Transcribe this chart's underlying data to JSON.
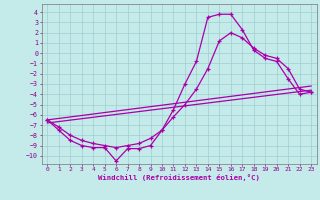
{
  "xlabel": "Windchill (Refroidissement éolien,°C)",
  "xlim": [
    -0.5,
    23.5
  ],
  "ylim": [
    -10.8,
    4.8
  ],
  "xticks": [
    0,
    1,
    2,
    3,
    4,
    5,
    6,
    7,
    8,
    9,
    10,
    11,
    12,
    13,
    14,
    15,
    16,
    17,
    18,
    19,
    20,
    21,
    22,
    23
  ],
  "yticks": [
    4,
    3,
    2,
    1,
    0,
    -1,
    -2,
    -3,
    -4,
    -5,
    -6,
    -7,
    -8,
    -9,
    -10
  ],
  "bg_color": "#c5eaea",
  "grid_color": "#9ecece",
  "line_color": "#aa00aa",
  "curve1_x": [
    0,
    1,
    2,
    3,
    4,
    5,
    6,
    7,
    8,
    9,
    10,
    11,
    12,
    13,
    14,
    15,
    16,
    17,
    18,
    19,
    20,
    21,
    22,
    23
  ],
  "curve1_y": [
    -6.5,
    -7.5,
    -8.5,
    -9.0,
    -9.2,
    -9.2,
    -10.5,
    -9.3,
    -9.3,
    -9.0,
    -7.5,
    -5.5,
    -3.0,
    -0.8,
    3.5,
    3.8,
    3.8,
    2.3,
    0.3,
    -0.5,
    -0.8,
    -2.5,
    -4.0,
    -3.8
  ],
  "curve2_x": [
    0,
    1,
    2,
    3,
    4,
    5,
    6,
    7,
    8,
    9,
    10,
    11,
    12,
    13,
    14,
    15,
    16,
    17,
    18,
    19,
    20,
    21,
    22,
    23
  ],
  "curve2_y": [
    -6.5,
    -7.2,
    -8.0,
    -8.5,
    -8.8,
    -9.0,
    -9.2,
    -9.0,
    -8.8,
    -8.3,
    -7.5,
    -6.2,
    -5.0,
    -3.5,
    -1.5,
    1.2,
    2.0,
    1.5,
    0.5,
    -0.2,
    -0.5,
    -1.5,
    -3.5,
    -3.8
  ],
  "line3_x": [
    0,
    23
  ],
  "line3_y": [
    -6.5,
    -3.2
  ],
  "line4_x": [
    0,
    23
  ],
  "line4_y": [
    -6.8,
    -3.6
  ]
}
